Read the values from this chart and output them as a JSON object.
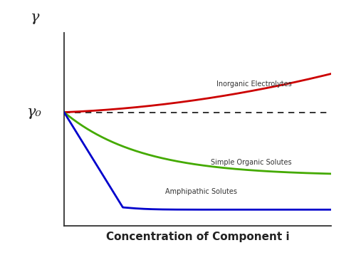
{
  "title": "",
  "xlabel": "Concentration of Component i",
  "ylabel": "γ",
  "ylabel_o": "γ₀",
  "background_color": "#ffffff",
  "xlabel_fontsize": 11,
  "ylabel_fontsize": 15,
  "gamma0_level": 0.6,
  "dashed_line_color": "#111111",
  "inorganic_color": "#cc0000",
  "organic_color": "#44aa00",
  "amphipathic_color": "#0000cc",
  "inorganic_label": "Inorganic Electrolytes",
  "organic_label": "Simple Organic Solutes",
  "amphipathic_label": "Amphipathic Solutes",
  "label_fontsize": 7.0
}
